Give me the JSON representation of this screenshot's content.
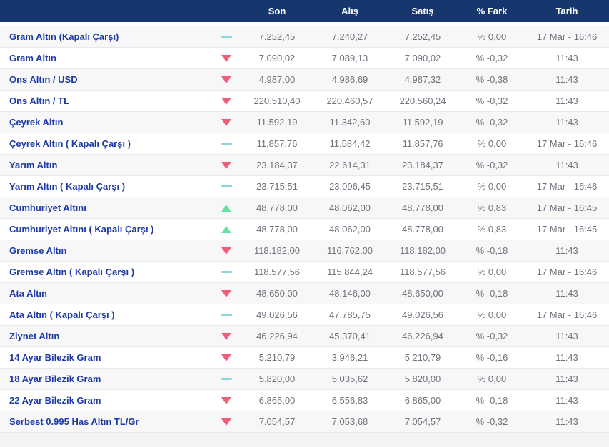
{
  "colors": {
    "header_bg": "#16376e",
    "header_text": "#ffffff",
    "name_text": "#1e3aa6",
    "value_text": "#6e727b",
    "down": "#f25c78",
    "up": "#66e1a3",
    "flat": "#86d6da",
    "row_alt_bg": "#f7f7f8",
    "row_border": "#e9e9ec",
    "footer_bg": "#f3f3f4"
  },
  "table": {
    "columns": {
      "son": "Son",
      "alis": "Alış",
      "satis": "Satış",
      "fark": "% Fark",
      "tarih": "Tarih"
    },
    "rows": [
      {
        "name": "Gram Altın (Kapalı Çarşı)",
        "trend": "flat",
        "son": "7.252,45",
        "alis": "7.240,27",
        "satis": "7.252,45",
        "fark": "% 0,00",
        "tarih": "17 Mar - 16:46"
      },
      {
        "name": "Gram Altın",
        "trend": "down",
        "son": "7.090,02",
        "alis": "7.089,13",
        "satis": "7.090,02",
        "fark": "% -0,32",
        "tarih": "11:43"
      },
      {
        "name": "Ons Altın / USD",
        "trend": "down",
        "son": "4.987,00",
        "alis": "4.986,69",
        "satis": "4.987,32",
        "fark": "% -0,38",
        "tarih": "11:43"
      },
      {
        "name": "Ons Altın / TL",
        "trend": "down",
        "son": "220.510,40",
        "alis": "220.460,57",
        "satis": "220.560,24",
        "fark": "% -0,32",
        "tarih": "11:43"
      },
      {
        "name": "Çeyrek Altın",
        "trend": "down",
        "son": "11.592,19",
        "alis": "11.342,60",
        "satis": "11.592,19",
        "fark": "% -0,32",
        "tarih": "11:43"
      },
      {
        "name": "Çeyrek Altın ( Kapalı Çarşı )",
        "trend": "flat",
        "son": "11.857,76",
        "alis": "11.584,42",
        "satis": "11.857,76",
        "fark": "% 0,00",
        "tarih": "17 Mar - 16:46"
      },
      {
        "name": "Yarım Altın",
        "trend": "down",
        "son": "23.184,37",
        "alis": "22.614,31",
        "satis": "23.184,37",
        "fark": "% -0,32",
        "tarih": "11:43"
      },
      {
        "name": "Yarım Altın ( Kapalı Çarşı )",
        "trend": "flat",
        "son": "23.715,51",
        "alis": "23.096,45",
        "satis": "23.715,51",
        "fark": "% 0,00",
        "tarih": "17 Mar - 16:46"
      },
      {
        "name": "Cumhuriyet Altını",
        "trend": "up",
        "son": "48.778,00",
        "alis": "48.062,00",
        "satis": "48.778,00",
        "fark": "% 0,83",
        "tarih": "17 Mar - 16:45"
      },
      {
        "name": "Cumhuriyet Altını ( Kapalı Çarşı )",
        "trend": "up",
        "son": "48.778,00",
        "alis": "48.062,00",
        "satis": "48.778,00",
        "fark": "% 0,83",
        "tarih": "17 Mar - 16:45"
      },
      {
        "name": "Gremse Altın",
        "trend": "down",
        "son": "118.182,00",
        "alis": "116.762,00",
        "satis": "118.182,00",
        "fark": "% -0,18",
        "tarih": "11:43"
      },
      {
        "name": "Gremse Altın ( Kapalı Çarşı )",
        "trend": "flat",
        "son": "118.577,56",
        "alis": "115.844,24",
        "satis": "118.577,56",
        "fark": "% 0,00",
        "tarih": "17 Mar - 16:46"
      },
      {
        "name": "Ata Altın",
        "trend": "down",
        "son": "48.650,00",
        "alis": "48.146,00",
        "satis": "48.650,00",
        "fark": "% -0,18",
        "tarih": "11:43"
      },
      {
        "name": "Ata Altın ( Kapalı Çarşı )",
        "trend": "flat",
        "son": "49.026,56",
        "alis": "47.785,75",
        "satis": "49.026,56",
        "fark": "% 0,00",
        "tarih": "17 Mar - 16:46"
      },
      {
        "name": "Ziynet Altın",
        "trend": "down",
        "son": "46.226,94",
        "alis": "45.370,41",
        "satis": "46.226,94",
        "fark": "% -0,32",
        "tarih": "11:43"
      },
      {
        "name": "14 Ayar Bilezik Gram",
        "trend": "down",
        "son": "5.210,79",
        "alis": "3.946,21",
        "satis": "5.210,79",
        "fark": "% -0,16",
        "tarih": "11:43"
      },
      {
        "name": "18 Ayar Bilezik Gram",
        "trend": "flat",
        "son": "5.820,00",
        "alis": "5.035,62",
        "satis": "5.820,00",
        "fark": "% 0,00",
        "tarih": "11:43"
      },
      {
        "name": "22 Ayar Bilezik Gram",
        "trend": "down",
        "son": "6.865,00",
        "alis": "6.556,83",
        "satis": "6.865,00",
        "fark": "% -0,18",
        "tarih": "11:43"
      },
      {
        "name": "Serbest 0.995 Has Altın TL/Gr",
        "trend": "down",
        "son": "7.054,57",
        "alis": "7.053,68",
        "satis": "7.054,57",
        "fark": "% -0,32",
        "tarih": "11:43"
      }
    ]
  }
}
